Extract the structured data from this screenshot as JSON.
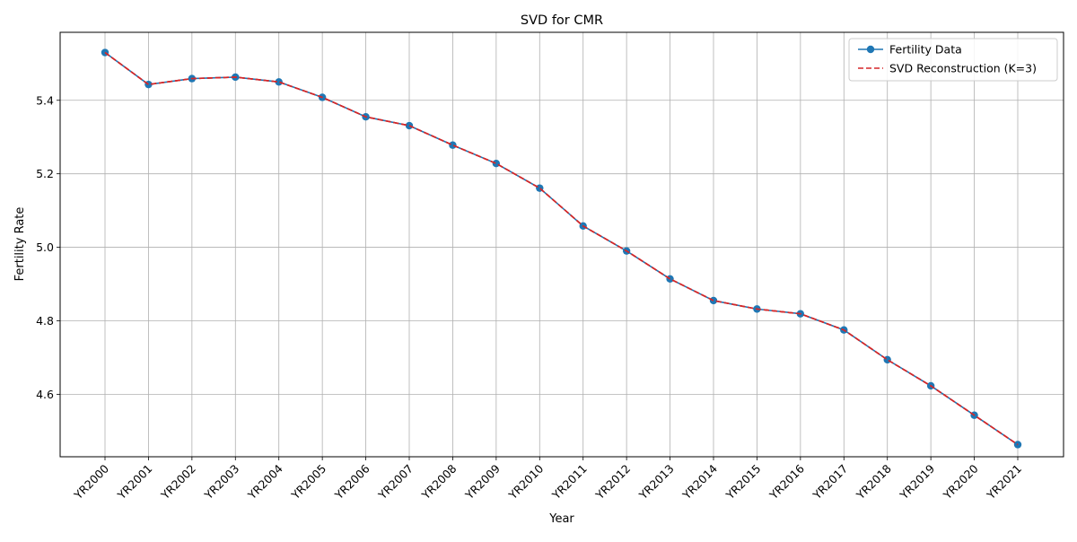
{
  "chart_data": {
    "type": "line",
    "title": "SVD for CMR",
    "xlabel": "Year",
    "ylabel": "Fertility Rate",
    "ylim": [
      4.43,
      5.585
    ],
    "yticks": [
      4.6,
      4.8,
      5.0,
      5.2,
      5.4
    ],
    "ytick_labels": [
      "4.6",
      "4.8",
      "5.0",
      "5.2",
      "5.4"
    ],
    "grid": true,
    "legend_position": "top-right",
    "categories": [
      "YR2000",
      "YR2001",
      "YR2002",
      "YR2003",
      "YR2004",
      "YR2005",
      "YR2006",
      "YR2007",
      "YR2008",
      "YR2009",
      "YR2010",
      "YR2011",
      "YR2012",
      "YR2013",
      "YR2014",
      "YR2015",
      "YR2016",
      "YR2017",
      "YR2018",
      "YR2019",
      "YR2020",
      "YR2021"
    ],
    "series": [
      {
        "name": "Fertility Data",
        "color": "#1f77b4",
        "style": "solid-marker",
        "values": [
          5.53,
          5.443,
          5.459,
          5.463,
          5.45,
          5.408,
          5.355,
          5.331,
          5.278,
          5.228,
          5.161,
          5.058,
          4.99,
          4.914,
          4.855,
          4.832,
          4.819,
          4.775,
          4.694,
          4.623,
          4.543,
          4.463
        ]
      },
      {
        "name": "SVD Reconstruction (K=3)",
        "color": "#d62728",
        "style": "dashed",
        "values": [
          5.53,
          5.443,
          5.459,
          5.463,
          5.45,
          5.408,
          5.355,
          5.331,
          5.278,
          5.228,
          5.161,
          5.058,
          4.99,
          4.914,
          4.855,
          4.832,
          4.819,
          4.775,
          4.694,
          4.623,
          4.543,
          4.463
        ]
      }
    ]
  }
}
